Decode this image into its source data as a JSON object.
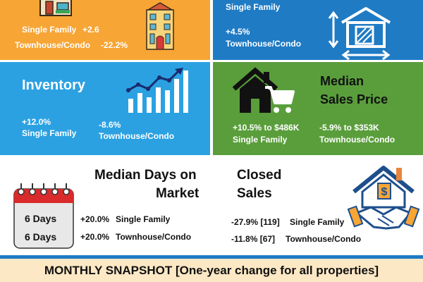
{
  "colors": {
    "orange": "#F7A535",
    "blue_dark": "#1F7BC4",
    "blue_light": "#2BA1E2",
    "green": "#5A9E3C",
    "white": "#FFFFFF",
    "navy": "#1E4F8C",
    "footer_bg": "#FCE8C4"
  },
  "top_left": {
    "line1_label": "Single Family",
    "line1_value": "+2.6",
    "line2_label": "Townhouse/Condo",
    "line2_value": "-22.2%",
    "icons": [
      "house-icon",
      "townhouse-building-icon"
    ]
  },
  "top_right": {
    "label_single": "Single Family",
    "value": "+4.5%",
    "label_townhouse": "Townhouse/Condo",
    "icons": [
      "house-square-footage-icon"
    ]
  },
  "inventory": {
    "title": "Inventory",
    "single_value": "+12.0%",
    "single_label": "Single Family",
    "townhouse_value": "-8.6%",
    "townhouse_label": "Townhouse/Condo",
    "icons": [
      "bar-chart-trend-icon"
    ]
  },
  "median_price": {
    "title_line1": "Median",
    "title_line2": "Sales Price",
    "single_value": "+10.5% to $486K",
    "single_label": "Single Family",
    "townhouse_value": "-5.9% to $353K",
    "townhouse_label": "Townhouse/Condo",
    "icons": [
      "house-icon",
      "shopping-cart-icon"
    ]
  },
  "days_on_market": {
    "title_line1": "Median Days on",
    "title_line2": "Market",
    "calendar_line1": "6 Days",
    "calendar_line2": "6 Days",
    "single_value": "+20.0%",
    "single_label": "Single Family",
    "townhouse_value": "+20.0%",
    "townhouse_label": "Townhouse/Condo",
    "icons": [
      "calendar-icon"
    ]
  },
  "closed_sales": {
    "title_line1": "Closed",
    "title_line2": "Sales",
    "single_value": "-27.9% [119]",
    "single_label": "Single Family",
    "townhouse_value": "-11.8% [67]",
    "townhouse_label": "Townhouse/Condo",
    "icons": [
      "handshake-house-dollar-icon"
    ]
  },
  "footer": {
    "text": "MONTHLY SNAPSHOT [One-year change for all properties]"
  }
}
